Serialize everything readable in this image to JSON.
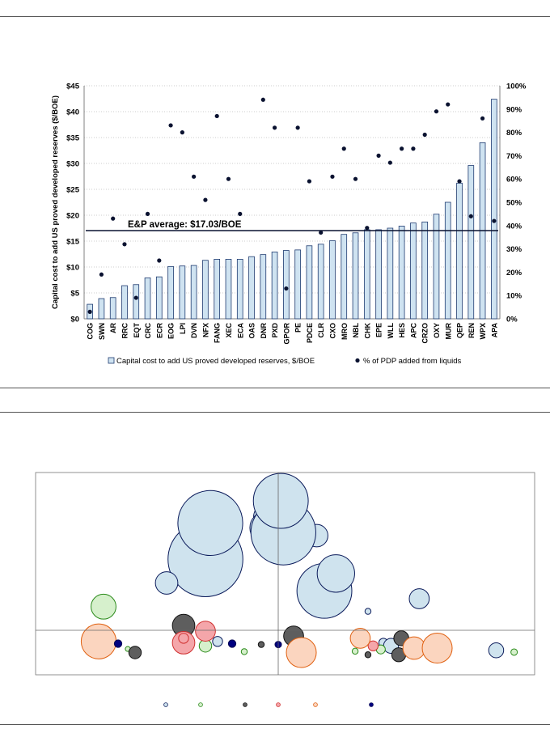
{
  "colors": {
    "bar_fill": "#cfe3f1",
    "bar_stroke": "#1f3b70",
    "dot": "#0a1230",
    "avg_line": "#0a1230",
    "bubble_blue": "#cfe3ee",
    "bubble_green": "#d6f0cc",
    "bubble_gray": "#5e5e5e",
    "bubble_red": "#f4a6aa",
    "bubble_orange": "#fbd5bf",
    "bubble_navy": "#000080"
  },
  "chart_data": [
    {
      "type": "bar",
      "ylabel": "Capital cost to add US proved developed reserves ($/BOE)",
      "ylim": [
        0,
        45
      ],
      "y_ticks": [
        "$0",
        "$5",
        "$10",
        "$15",
        "$20",
        "$25",
        "$30",
        "$35",
        "$40",
        "$45"
      ],
      "y2lim": [
        0,
        100
      ],
      "y2_ticks": [
        "0%",
        "10%",
        "20%",
        "30%",
        "40%",
        "50%",
        "60%",
        "70%",
        "80%",
        "90%",
        "100%"
      ],
      "grid": true,
      "legend_position": "bottom",
      "categories": [
        "COG",
        "SWN",
        "AR",
        "RRC",
        "EQT",
        "CRC",
        "ECR",
        "EOG",
        "LPI",
        "DVN",
        "NFX",
        "FANG",
        "XEC",
        "ECA",
        "OAS",
        "DNR",
        "PXD",
        "GPOR",
        "PE",
        "PDCE",
        "CLR",
        "CXO",
        "MRO",
        "NBL",
        "CHK",
        "EPE",
        "WLL",
        "HES",
        "APC",
        "CRZO",
        "OXY",
        "MUR",
        "QEP",
        "REN",
        "WPX",
        "APA"
      ],
      "series": [
        {
          "name": "Capital cost to add US proved developed reserves, $/BOE",
          "kind": "bar",
          "axis": "left",
          "values": [
            2.8,
            3.9,
            4.1,
            6.4,
            6.6,
            7.9,
            8.1,
            10.1,
            10.2,
            10.3,
            11.3,
            11.5,
            11.5,
            11.5,
            12.0,
            12.4,
            12.9,
            13.2,
            13.3,
            14.1,
            14.4,
            15.1,
            16.3,
            16.6,
            17.2,
            17.2,
            17.5,
            17.9,
            18.5,
            18.7,
            20.2,
            22.5,
            26.2,
            29.6,
            34.0,
            42.4
          ]
        },
        {
          "name": "% of PDP added from liquids",
          "kind": "scatter",
          "axis": "right",
          "values": [
            3,
            19,
            43,
            32,
            9,
            45,
            25,
            83,
            80,
            61,
            51,
            87,
            60,
            45,
            null,
            94,
            82,
            13,
            82,
            59,
            37,
            61,
            73,
            60,
            39,
            70,
            67,
            73,
            73,
            79,
            89,
            92,
            59,
            44,
            86,
            42
          ]
        }
      ],
      "annotations": [
        {
          "text": "E&P average: $17.03/BOE",
          "y": 17.03
        }
      ]
    },
    {
      "type": "scatter",
      "grid": false,
      "legend_position": "bottom",
      "legend": [
        {
          "color_key": "bubble_blue"
        },
        {
          "color_key": "bubble_green"
        },
        {
          "color_key": "bubble_gray"
        },
        {
          "color_key": "bubble_red"
        },
        {
          "color_key": "bubble_orange"
        },
        {
          "color_key": "bubble_navy"
        }
      ],
      "bubbles": [
        {
          "x": 0.18,
          "y": 0.25,
          "r": 0.11,
          "c": "bubble_blue"
        },
        {
          "x": 0.225,
          "y": 0.36,
          "r": 0.075,
          "c": "bubble_blue"
        },
        {
          "x": 0.55,
          "y": 0.2,
          "r": 0.04,
          "c": "bubble_blue"
        },
        {
          "x": 0.15,
          "y": 0.6,
          "r": 0.045,
          "c": "bubble_blue"
        },
        {
          "x": -0.05,
          "y": 0.72,
          "r": 0.05,
          "c": "bubble_blue"
        },
        {
          "x": -0.05,
          "y": 0.65,
          "r": 0.065,
          "c": "bubble_blue"
        },
        {
          "x": -0.3,
          "y": 0.45,
          "r": 0.15,
          "c": "bubble_blue"
        },
        {
          "x": -0.28,
          "y": 0.68,
          "r": 0.13,
          "c": "bubble_blue"
        },
        {
          "x": 0.02,
          "y": 0.62,
          "r": 0.13,
          "c": "bubble_blue"
        },
        {
          "x": 0.01,
          "y": 0.82,
          "r": 0.11,
          "c": "bubble_blue"
        },
        {
          "x": -0.46,
          "y": 0.3,
          "r": 0.045,
          "c": "bubble_blue"
        },
        {
          "x": 0.35,
          "y": 0.12,
          "r": 0.012,
          "c": "bubble_blue"
        },
        {
          "x": -0.25,
          "y": -0.25,
          "r": 0.02,
          "c": "bubble_blue"
        },
        {
          "x": 0.41,
          "y": -0.28,
          "r": 0.018,
          "c": "bubble_blue"
        },
        {
          "x": 0.44,
          "y": -0.35,
          "r": 0.03,
          "c": "bubble_blue"
        },
        {
          "x": 0.85,
          "y": -0.45,
          "r": 0.03,
          "c": "bubble_blue"
        },
        {
          "x": -0.72,
          "y": 0.15,
          "r": 0.05,
          "c": "bubble_green"
        },
        {
          "x": -0.62,
          "y": -0.42,
          "r": 0.01,
          "c": "bubble_green"
        },
        {
          "x": -0.3,
          "y": -0.35,
          "r": 0.025,
          "c": "bubble_green"
        },
        {
          "x": -0.14,
          "y": -0.48,
          "r": 0.012,
          "c": "bubble_green"
        },
        {
          "x": 0.3,
          "y": -0.47,
          "r": 0.012,
          "c": "bubble_green"
        },
        {
          "x": 0.4,
          "y": -0.43,
          "r": 0.018,
          "c": "bubble_green"
        },
        {
          "x": 0.92,
          "y": -0.49,
          "r": 0.013,
          "c": "bubble_green"
        },
        {
          "x": -0.39,
          "y": 0.03,
          "r": 0.045,
          "c": "bubble_gray"
        },
        {
          "x": -0.59,
          "y": -0.5,
          "r": 0.025,
          "c": "bubble_gray"
        },
        {
          "x": -0.07,
          "y": -0.32,
          "r": 0.012,
          "c": "bubble_gray"
        },
        {
          "x": 0.06,
          "y": -0.13,
          "r": 0.04,
          "c": "bubble_gray"
        },
        {
          "x": 0.48,
          "y": -0.18,
          "r": 0.03,
          "c": "bubble_gray"
        },
        {
          "x": 0.47,
          "y": -0.55,
          "r": 0.028,
          "c": "bubble_gray"
        },
        {
          "x": 0.35,
          "y": -0.55,
          "r": 0.012,
          "c": "bubble_gray"
        },
        {
          "x": -0.3,
          "y": -0.02,
          "r": 0.04,
          "c": "bubble_red"
        },
        {
          "x": -0.39,
          "y": -0.28,
          "r": 0.045,
          "c": "bubble_red"
        },
        {
          "x": -0.39,
          "y": -0.18,
          "r": 0.02,
          "c": "bubble_red"
        },
        {
          "x": 0.37,
          "y": -0.35,
          "r": 0.02,
          "c": "bubble_red"
        },
        {
          "x": -0.74,
          "y": -0.25,
          "r": 0.07,
          "c": "bubble_orange"
        },
        {
          "x": 0.09,
          "y": -0.5,
          "r": 0.06,
          "c": "bubble_orange"
        },
        {
          "x": 0.32,
          "y": -0.18,
          "r": 0.04,
          "c": "bubble_orange"
        },
        {
          "x": 0.53,
          "y": -0.4,
          "r": 0.045,
          "c": "bubble_orange"
        },
        {
          "x": 0.62,
          "y": -0.4,
          "r": 0.06,
          "c": "bubble_orange"
        },
        {
          "x": -0.66,
          "y": -0.3,
          "r": 0.015,
          "c": "bubble_navy"
        },
        {
          "x": -0.19,
          "y": -0.3,
          "r": 0.015,
          "c": "bubble_navy"
        },
        {
          "x": 0.0,
          "y": -0.32,
          "r": 0.013,
          "c": "bubble_navy"
        }
      ]
    }
  ]
}
